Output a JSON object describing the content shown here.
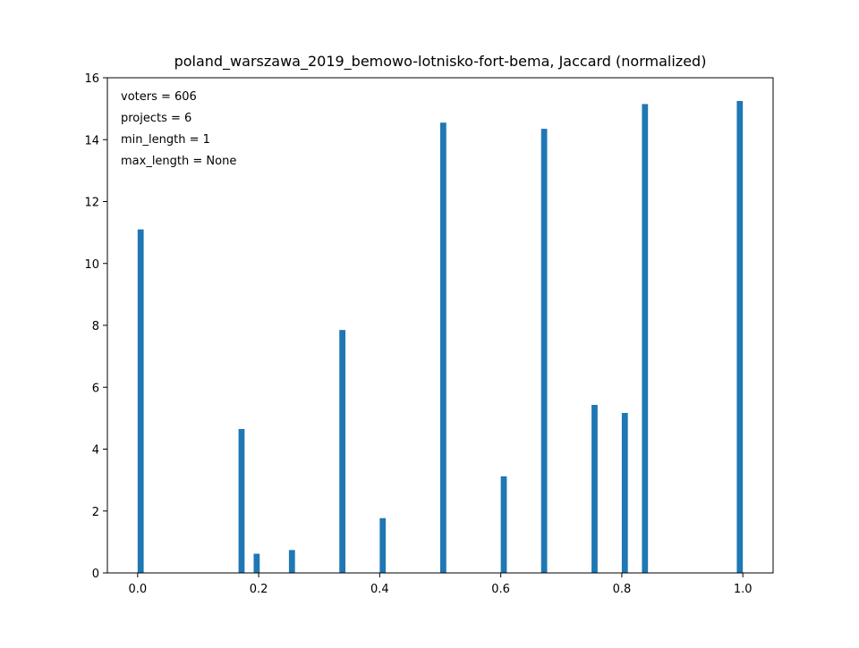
{
  "chart_data": {
    "type": "bar",
    "title": "poland_warszawa_2019_bemowo-lotnisko-fort-bema, Jaccard (normalized)",
    "xlabel": "",
    "ylabel": "",
    "xlim": [
      -0.05,
      1.05
    ],
    "ylim": [
      0,
      16
    ],
    "x_ticks": [
      0.0,
      0.2,
      0.4,
      0.6,
      0.8,
      1.0
    ],
    "x_tick_labels": [
      "0.0",
      "0.2",
      "0.4",
      "0.6",
      "0.8",
      "1.0"
    ],
    "y_ticks": [
      0,
      2,
      4,
      6,
      8,
      10,
      12,
      14,
      16
    ],
    "y_tick_labels": [
      "0",
      "2",
      "4",
      "6",
      "8",
      "10",
      "12",
      "14",
      "16"
    ],
    "bar_width": 0.01,
    "bar_color": "#1f77b4",
    "grid": false,
    "annotations": [
      "voters = 606",
      "projects = 6",
      "min_length = 1",
      "max_length = None"
    ],
    "bars": [
      {
        "x": 0.005,
        "value": 11.1
      },
      {
        "x": 0.1717,
        "value": 4.65
      },
      {
        "x": 0.1967,
        "value": 0.62
      },
      {
        "x": 0.255,
        "value": 0.74
      },
      {
        "x": 0.3383,
        "value": 7.85
      },
      {
        "x": 0.405,
        "value": 1.77
      },
      {
        "x": 0.505,
        "value": 14.55
      },
      {
        "x": 0.605,
        "value": 3.12
      },
      {
        "x": 0.6717,
        "value": 14.35
      },
      {
        "x": 0.755,
        "value": 5.43
      },
      {
        "x": 0.805,
        "value": 5.17
      },
      {
        "x": 0.8383,
        "value": 15.15
      },
      {
        "x": 0.995,
        "value": 15.25
      }
    ]
  }
}
